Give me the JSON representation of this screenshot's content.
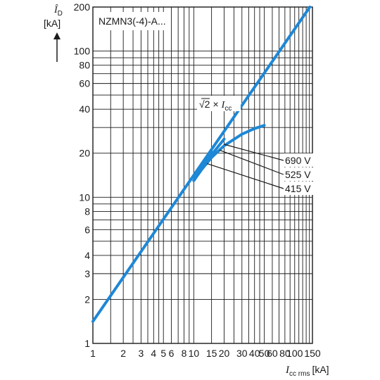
{
  "chart_data": {
    "type": "line",
    "title": "NZMN3(-4)-A...",
    "ylabel": {
      "symbol": "Î",
      "subscript": "D",
      "unit": "[kA]"
    },
    "xlabel": {
      "symbol": "I",
      "subscript": "cc rms",
      "unit": "[kA]"
    },
    "x_scale": "log",
    "y_scale": "log",
    "xlim": [
      1,
      150
    ],
    "ylim": [
      1,
      200
    ],
    "grid": true,
    "x_ticks": [
      "1",
      "2",
      "3",
      "4",
      "5",
      "6",
      "8",
      "10",
      "15",
      "20",
      "30",
      "40",
      "50",
      "60",
      "80",
      "100",
      "150"
    ],
    "y_ticks": [
      "1",
      "2",
      "3",
      "4",
      "6",
      "8",
      "10",
      "20",
      "40",
      "60",
      "80",
      "100",
      "200"
    ],
    "series": [
      {
        "name": "√2 × Icc",
        "label_parts": {
          "root": "√2",
          "times": "×",
          "symbol": "I",
          "subscript": "cc"
        },
        "x": [
          1,
          141.4
        ],
        "y": [
          1.414,
          200
        ]
      },
      {
        "name": "690 V",
        "x": [
          10,
          12,
          15,
          20,
          30,
          40,
          50
        ],
        "y": [
          13,
          15.5,
          18.7,
          22.5,
          27,
          29.5,
          31
        ]
      },
      {
        "name": "525 V",
        "x": [
          10,
          12,
          15,
          20
        ],
        "y": [
          13,
          15.8,
          19.5,
          25
        ]
      },
      {
        "name": "415 V",
        "x": [
          10,
          12,
          15
        ],
        "y": [
          13,
          16.4,
          20.5
        ]
      }
    ],
    "annotations": [
      {
        "text": "690 V",
        "points_to": [
          20,
          23
        ]
      },
      {
        "text": "525 V",
        "points_to": [
          18,
          21
        ]
      },
      {
        "text": "415 V",
        "points_to": [
          13.5,
          17
        ]
      }
    ]
  }
}
